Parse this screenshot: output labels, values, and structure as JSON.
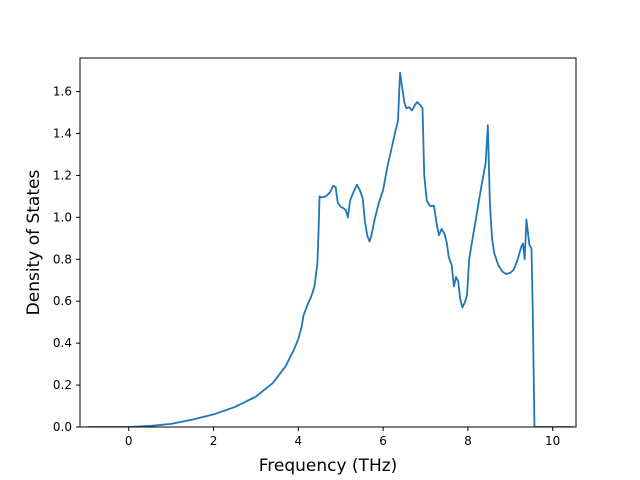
{
  "chart_data": {
    "type": "line",
    "xlabel": "Frequency (THz)",
    "ylabel": "Density of States",
    "xlim": [
      -1.15,
      10.55
    ],
    "ylim": [
      0.0,
      1.76
    ],
    "x_ticks": [
      0,
      2,
      4,
      6,
      8,
      10
    ],
    "y_ticks": [
      0.0,
      0.2,
      0.4,
      0.6,
      0.8,
      1.0,
      1.2,
      1.4,
      1.6
    ],
    "x_tick_labels": [
      "0",
      "2",
      "4",
      "6",
      "8",
      "10"
    ],
    "y_tick_labels": [
      "0.0",
      "0.2",
      "0.4",
      "0.6",
      "0.8",
      "1.0",
      "1.2",
      "1.4",
      "1.6"
    ],
    "grid": false,
    "series": [
      {
        "color": "#1f77b4",
        "points": [
          [
            -0.97,
            0.0
          ],
          [
            0.0,
            0.0
          ],
          [
            0.5,
            0.005
          ],
          [
            1.0,
            0.015
          ],
          [
            1.5,
            0.035
          ],
          [
            2.0,
            0.06
          ],
          [
            2.5,
            0.095
          ],
          [
            3.0,
            0.145
          ],
          [
            3.4,
            0.21
          ],
          [
            3.7,
            0.29
          ],
          [
            3.9,
            0.37
          ],
          [
            4.0,
            0.42
          ],
          [
            4.08,
            0.48
          ],
          [
            4.12,
            0.53
          ],
          [
            4.2,
            0.575
          ],
          [
            4.3,
            0.62
          ],
          [
            4.38,
            0.67
          ],
          [
            4.45,
            0.78
          ],
          [
            4.48,
            0.95
          ],
          [
            4.5,
            1.1
          ],
          [
            4.55,
            1.095
          ],
          [
            4.65,
            1.1
          ],
          [
            4.75,
            1.12
          ],
          [
            4.82,
            1.15
          ],
          [
            4.88,
            1.145
          ],
          [
            4.93,
            1.07
          ],
          [
            5.0,
            1.05
          ],
          [
            5.05,
            1.045
          ],
          [
            5.12,
            1.035
          ],
          [
            5.17,
            1.0
          ],
          [
            5.22,
            1.08
          ],
          [
            5.3,
            1.12
          ],
          [
            5.38,
            1.155
          ],
          [
            5.45,
            1.13
          ],
          [
            5.52,
            1.09
          ],
          [
            5.57,
            0.98
          ],
          [
            5.63,
            0.91
          ],
          [
            5.68,
            0.885
          ],
          [
            5.72,
            0.91
          ],
          [
            5.8,
            0.99
          ],
          [
            5.9,
            1.07
          ],
          [
            6.0,
            1.13
          ],
          [
            6.1,
            1.24
          ],
          [
            6.2,
            1.33
          ],
          [
            6.3,
            1.42
          ],
          [
            6.35,
            1.46
          ],
          [
            6.4,
            1.69
          ],
          [
            6.45,
            1.62
          ],
          [
            6.5,
            1.55
          ],
          [
            6.55,
            1.52
          ],
          [
            6.62,
            1.525
          ],
          [
            6.68,
            1.51
          ],
          [
            6.75,
            1.535
          ],
          [
            6.8,
            1.55
          ],
          [
            6.88,
            1.535
          ],
          [
            6.93,
            1.52
          ],
          [
            6.97,
            1.2
          ],
          [
            7.03,
            1.08
          ],
          [
            7.1,
            1.055
          ],
          [
            7.2,
            1.055
          ],
          [
            7.27,
            0.96
          ],
          [
            7.32,
            0.915
          ],
          [
            7.38,
            0.945
          ],
          [
            7.45,
            0.92
          ],
          [
            7.5,
            0.88
          ],
          [
            7.55,
            0.81
          ],
          [
            7.62,
            0.77
          ],
          [
            7.67,
            0.67
          ],
          [
            7.72,
            0.715
          ],
          [
            7.77,
            0.695
          ],
          [
            7.82,
            0.61
          ],
          [
            7.87,
            0.57
          ],
          [
            7.93,
            0.595
          ],
          [
            7.98,
            0.63
          ],
          [
            8.03,
            0.8
          ],
          [
            8.12,
            0.91
          ],
          [
            8.22,
            1.03
          ],
          [
            8.32,
            1.15
          ],
          [
            8.42,
            1.26
          ],
          [
            8.47,
            1.44
          ],
          [
            8.52,
            1.06
          ],
          [
            8.57,
            0.9
          ],
          [
            8.62,
            0.83
          ],
          [
            8.72,
            0.77
          ],
          [
            8.82,
            0.74
          ],
          [
            8.9,
            0.73
          ],
          [
            9.0,
            0.735
          ],
          [
            9.08,
            0.75
          ],
          [
            9.16,
            0.79
          ],
          [
            9.26,
            0.86
          ],
          [
            9.3,
            0.875
          ],
          [
            9.34,
            0.8
          ],
          [
            9.38,
            0.99
          ],
          [
            9.42,
            0.92
          ],
          [
            9.45,
            0.87
          ],
          [
            9.5,
            0.85
          ],
          [
            9.53,
            0.55
          ],
          [
            9.57,
            0.0
          ],
          [
            10.0,
            0.0
          ],
          [
            10.48,
            0.0
          ]
        ]
      }
    ]
  }
}
